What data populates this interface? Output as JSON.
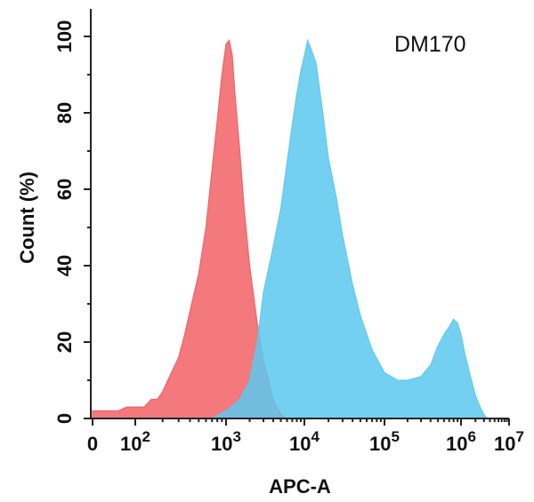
{
  "chart_data": {
    "type": "area",
    "title": "",
    "annotation": "DM170",
    "xlabel": "APC-A",
    "ylabel": "Count  (%)",
    "x_scale": "biexponential",
    "xlim": [
      0,
      10000000
    ],
    "ylim": [
      0,
      110
    ],
    "grid": false,
    "x_ticks": [
      {
        "value": 0,
        "base": "0",
        "exp": ""
      },
      {
        "value": 100,
        "base": "10",
        "exp": "2"
      },
      {
        "value": 1000,
        "base": "10",
        "exp": "3"
      },
      {
        "value": 10000,
        "base": "10",
        "exp": "4"
      },
      {
        "value": 100000,
        "base": "10",
        "exp": "5"
      },
      {
        "value": 1000000,
        "base": "10",
        "exp": "6"
      },
      {
        "value": 10000000,
        "base": "10",
        "exp": "7"
      }
    ],
    "y_ticks": [
      "0",
      "20",
      "40",
      "60",
      "80",
      "100"
    ],
    "series": [
      {
        "color": "#f05b60",
        "opacity": 0.82,
        "x": [
          0,
          20,
          40,
          60,
          80,
          100,
          125,
          150,
          175,
          200,
          250,
          300,
          350,
          400,
          500,
          600,
          700,
          800,
          900,
          1000,
          1100,
          1200,
          1300,
          1500,
          1700,
          2000,
          2500,
          3000,
          3500,
          4000,
          5000,
          6000
        ],
        "y": [
          2,
          2,
          2,
          2,
          3,
          3,
          3,
          5,
          5,
          7,
          12,
          16,
          22,
          28,
          38,
          50,
          65,
          78,
          90,
          98,
          99,
          95,
          85,
          70,
          55,
          40,
          25,
          15,
          10,
          5,
          1,
          0
        ]
      },
      {
        "color": "#5bc8ee",
        "opacity": 0.85,
        "x": [
          500,
          700,
          1000,
          1500,
          2000,
          2500,
          3000,
          4000,
          5000,
          6000,
          7000,
          8000,
          9000,
          10000,
          11000,
          12000,
          14000,
          17000,
          20000,
          25000,
          30000,
          40000,
          50000,
          70000,
          100000,
          150000,
          200000,
          300000,
          400000,
          500000,
          600000,
          700000,
          800000,
          900000,
          1000000,
          1200000,
          1500000,
          2000000,
          2500000,
          3000000,
          3500000
        ],
        "y": [
          0,
          0,
          2,
          5,
          10,
          20,
          33,
          45,
          55,
          67,
          77,
          85,
          91,
          95,
          99,
          97,
          93,
          80,
          68,
          58,
          48,
          35,
          27,
          18,
          12,
          10,
          10,
          11,
          14,
          19,
          22,
          24,
          26,
          25,
          22,
          17,
          12,
          6,
          3,
          1,
          0
        ]
      }
    ]
  }
}
